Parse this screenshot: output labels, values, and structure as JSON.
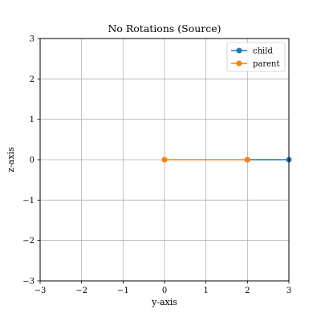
{
  "chart_data": {
    "type": "line",
    "title": "No Rotations (Source)",
    "xlabel": "y-axis",
    "ylabel": "z-axis",
    "xlim": [
      -3,
      3
    ],
    "ylim": [
      -3,
      3
    ],
    "xticks": [
      -3,
      -2,
      -1,
      0,
      1,
      2,
      3
    ],
    "yticks": [
      -3,
      -2,
      -1,
      0,
      1,
      2,
      3
    ],
    "xtick_labels": [
      "−3",
      "−2",
      "−1",
      "0",
      "1",
      "2",
      "3"
    ],
    "ytick_labels": [
      "−3",
      "−2",
      "−1",
      "0",
      "1",
      "2",
      "3"
    ],
    "grid": true,
    "legend_position": "top-right",
    "series": [
      {
        "name": "child",
        "color": "#1f77b4",
        "marker": "circle",
        "x": [
          2,
          3
        ],
        "y": [
          0,
          0
        ]
      },
      {
        "name": "parent",
        "color": "#ff7f0e",
        "marker": "circle",
        "x": [
          0,
          2
        ],
        "y": [
          0,
          0
        ]
      }
    ]
  }
}
